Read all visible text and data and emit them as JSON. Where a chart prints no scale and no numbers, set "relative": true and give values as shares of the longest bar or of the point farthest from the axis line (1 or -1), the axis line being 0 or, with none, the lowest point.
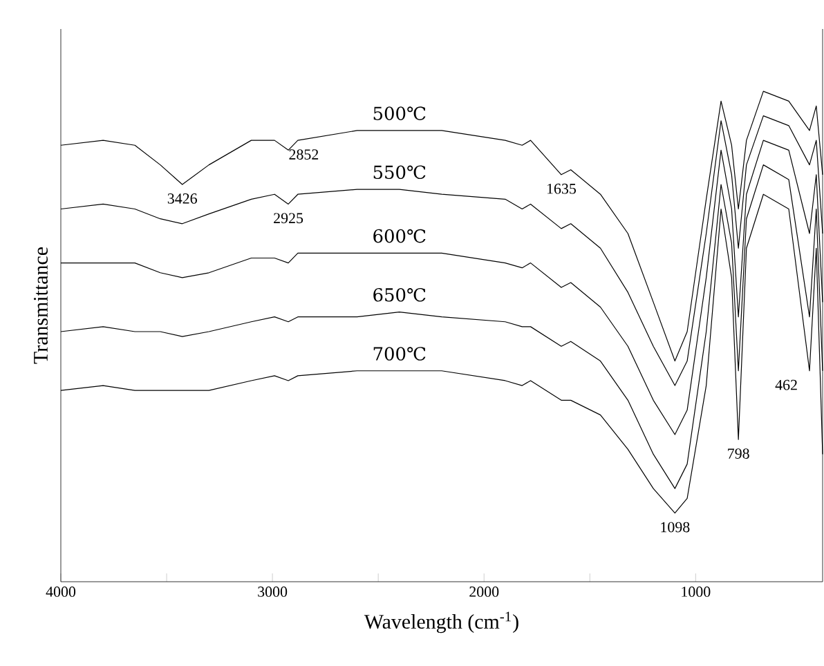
{
  "chart_data": {
    "type": "line",
    "relative": true,
    "xlabel": "Wavelength (cm$^{-1}$)",
    "ylabel": "Transmittance",
    "x": [
      4000,
      3800,
      3650,
      3530,
      3426,
      3300,
      3100,
      2990,
      2925,
      2880,
      2600,
      2400,
      2200,
      1900,
      1820,
      1780,
      1635,
      1590,
      1450,
      1320,
      1200,
      1098,
      1040,
      950,
      880,
      830,
      798,
      760,
      680,
      560,
      462,
      430,
      400
    ],
    "xlim": [
      4000,
      400
    ],
    "xticks": [
      4000,
      {
        "value": 3500,
        "label": null
      },
      3000,
      {
        "value": 2500,
        "label": null
      },
      2000,
      {
        "value": 1500,
        "label": null
      },
      1000
    ],
    "series": [
      {
        "name": "500℃",
        "color": "#000000",
        "values": [
          0.89,
          0.9,
          0.89,
          0.85,
          0.81,
          0.85,
          0.9,
          0.9,
          0.88,
          0.9,
          0.92,
          0.92,
          0.92,
          0.9,
          0.89,
          0.9,
          0.83,
          0.84,
          0.79,
          0.71,
          0.57,
          0.45,
          0.51,
          0.78,
          0.98,
          0.89,
          0.76,
          0.9,
          1.0,
          0.98,
          0.92,
          0.97,
          0.83
        ]
      },
      {
        "name": "550℃",
        "color": "#000000",
        "values": [
          0.76,
          0.77,
          0.76,
          0.74,
          0.73,
          0.75,
          0.78,
          0.79,
          0.77,
          0.79,
          0.8,
          0.8,
          0.79,
          0.78,
          0.76,
          0.77,
          0.72,
          0.73,
          0.68,
          0.59,
          0.48,
          0.4,
          0.45,
          0.71,
          0.94,
          0.83,
          0.68,
          0.85,
          0.95,
          0.93,
          0.85,
          0.9,
          0.71
        ]
      },
      {
        "name": "600℃",
        "color": "#000000",
        "values": [
          0.65,
          0.65,
          0.65,
          0.63,
          0.62,
          0.63,
          0.66,
          0.66,
          0.65,
          0.67,
          0.67,
          0.67,
          0.67,
          0.65,
          0.64,
          0.65,
          0.6,
          0.61,
          0.56,
          0.48,
          0.37,
          0.3,
          0.35,
          0.62,
          0.88,
          0.76,
          0.54,
          0.79,
          0.9,
          0.88,
          0.71,
          0.83,
          0.57
        ]
      },
      {
        "name": "650℃",
        "color": "#000000",
        "values": [
          0.51,
          0.52,
          0.51,
          0.51,
          0.5,
          0.51,
          0.53,
          0.54,
          0.53,
          0.54,
          0.54,
          0.55,
          0.54,
          0.53,
          0.52,
          0.52,
          0.48,
          0.49,
          0.45,
          0.37,
          0.26,
          0.19,
          0.24,
          0.51,
          0.81,
          0.69,
          0.43,
          0.74,
          0.85,
          0.82,
          0.54,
          0.76,
          0.43
        ]
      },
      {
        "name": "700℃",
        "color": "#000000",
        "values": [
          0.39,
          0.4,
          0.39,
          0.39,
          0.39,
          0.39,
          0.41,
          0.42,
          0.41,
          0.42,
          0.43,
          0.43,
          0.43,
          0.41,
          0.4,
          0.41,
          0.37,
          0.37,
          0.34,
          0.27,
          0.19,
          0.14,
          0.17,
          0.4,
          0.76,
          0.62,
          0.29,
          0.68,
          0.79,
          0.76,
          0.43,
          0.68,
          0.26
        ]
      }
    ],
    "annotations": [
      {
        "text": "3426",
        "x": 3426,
        "y": 0.81
      },
      {
        "text": "2852",
        "x": 2852,
        "y": 0.9
      },
      {
        "text": "2925",
        "x": 2925,
        "y": 0.77
      },
      {
        "text": "1635",
        "x": 1635,
        "y": 0.83
      },
      {
        "text": "1098",
        "x": 1098,
        "y": 0.14
      },
      {
        "text": "798",
        "x": 798,
        "y": 0.29
      },
      {
        "text": "462",
        "x": 462,
        "y": 0.43
      }
    ],
    "legend": false,
    "grid": false,
    "marker": "none",
    "line_style": "solid"
  }
}
